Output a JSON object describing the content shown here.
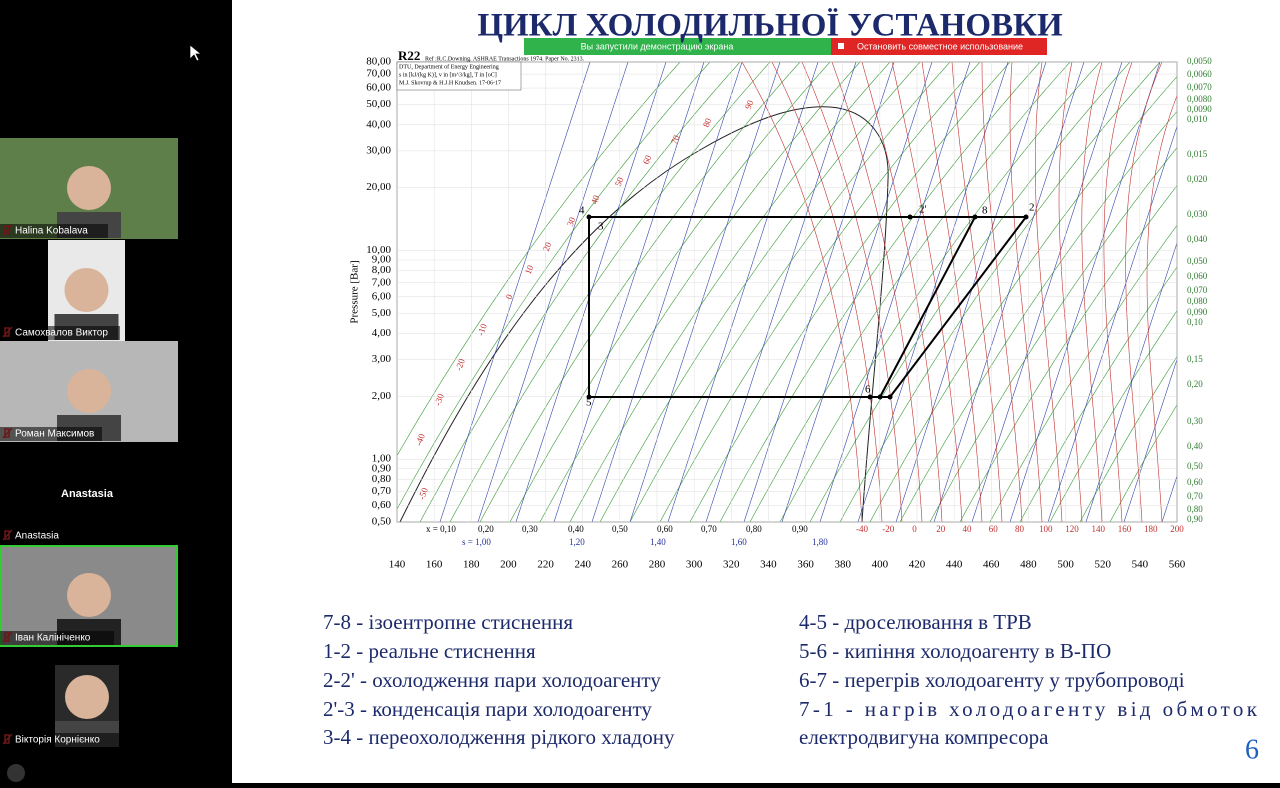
{
  "sidebar": {
    "participants": [
      {
        "name": "Halina Kobalava"
      },
      {
        "name": "Самохвалов Виктор"
      },
      {
        "name": "Роман Максимов"
      },
      {
        "name": "Anastasia",
        "avatar_text": "Anastasia"
      },
      {
        "name": "Іван Калініченко"
      },
      {
        "name": "Вікторія Корнієнко"
      }
    ]
  },
  "share_bar": {
    "status": "Вы запустили демонстрацию экрана",
    "stop": "Остановить совместное использование"
  },
  "slide": {
    "title": "ЦИКЛ ХОЛОДИЛЬНОЇ УСТАНОВКИ",
    "diagram": {
      "refrigerant": "R22",
      "reference": "Ref :R.C.Downing. ASHRAE Transactions 1974. Paper No. 2313.",
      "info": [
        "DTU, Department of Energy Engineering",
        "s in [kJ/(kg K)], v in [m^3/kg], T in [oC]",
        "M.J. Skovrup & H.J.H Knudsen. 17-06-17"
      ],
      "y_label": "Pressure [Bar]",
      "pressure_ticks": [
        "80,00",
        "70,00",
        "60,00",
        "50,00",
        "40,00",
        "30,00",
        "20,00",
        "10,00",
        "9,00",
        "8,00",
        "7,00",
        "6,00",
        "5,00",
        "4,00",
        "3,00",
        "2,00",
        "1,00",
        "0,90",
        "0,80",
        "0,70",
        "0,60",
        "0,50"
      ],
      "enthalpy_ticks": [
        "140",
        "160",
        "180",
        "200",
        "220",
        "240",
        "260",
        "280",
        "300",
        "320",
        "340",
        "360",
        "380",
        "400",
        "420",
        "440",
        "460",
        "480",
        "500",
        "520",
        "540",
        "560"
      ],
      "quality_labels": [
        "x = 0,10",
        "0,20",
        "0,30",
        "0,40",
        "0,50",
        "0,60",
        "0,70",
        "0,80",
        "0,90"
      ],
      "entropy_labels": [
        "s = 1,00",
        "1,20",
        "1,40",
        "1,60",
        "1,80"
      ],
      "bottom_temps": [
        "-40",
        "-20",
        "0",
        "20",
        "40",
        "60",
        "80",
        "100",
        "120",
        "140",
        "160",
        "180",
        "200"
      ],
      "dome_temps": [
        "-50",
        "-40",
        "-30",
        "-20",
        "-10",
        "0",
        "10",
        "20",
        "30",
        "40",
        "50",
        "60",
        "70",
        "80",
        "90"
      ],
      "volume_labels": [
        "0,0050",
        "0,0060",
        "0,0070",
        "0,0080",
        "0,0090",
        "0,010",
        "0,015",
        "0,020",
        "0,030",
        "0,040",
        "0,050",
        "0,060",
        "0,070",
        "0,080",
        "0,090",
        "0,10",
        "0,15",
        "0,20",
        "0,30",
        "0,40",
        "0,50",
        "0,60",
        "0,70",
        "0,80",
        "0,90"
      ],
      "points": [
        "4",
        "3",
        "5",
        "6",
        "2'",
        "8",
        "2"
      ]
    },
    "legend_left": [
      "7-8 - ізоентропне стиснення",
      "1-2 - реальне стиснення",
      "2-2' - охолодження пари холодоагенту",
      "2'-3 - конденсація пари холодоагенту",
      "3-4 - переохолодження рідкого хладону"
    ],
    "legend_right": [
      "4-5 - дроселювання в ТРВ",
      "5-6 - кипіння холодоагенту в В-ПО",
      "6-7 - перегрів холодоагенту у трубопроводі",
      "7-1  -  нагрів  холодоагенту  від  обмоток",
      "електродвигуна  компресора"
    ],
    "page": "6"
  }
}
